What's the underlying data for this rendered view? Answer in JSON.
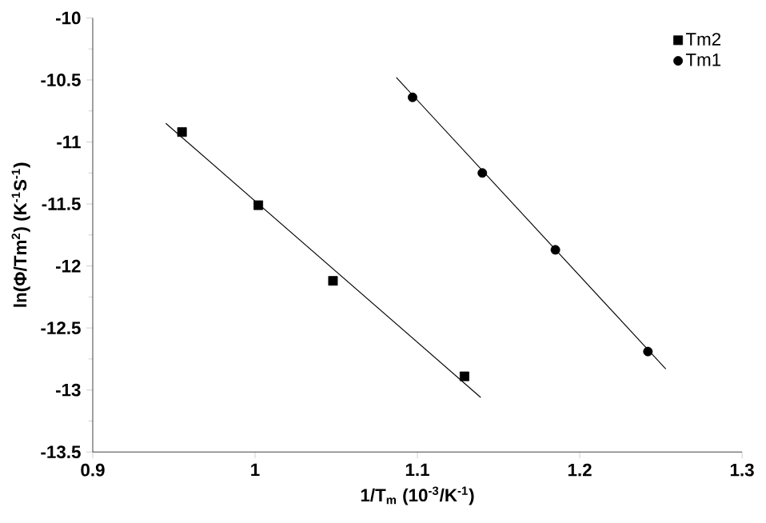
{
  "chart_data": {
    "type": "scatter",
    "xlabel": "1/T$_{m}$ (10$^{-3}$/K$^{-1}$)",
    "ylabel": "ln(Φ/Tm$^{2}$) (K$^{-1}$S$^{-1}$)",
    "xlim": [
      0.9,
      1.3
    ],
    "xticks": [
      0.9,
      1,
      1.1,
      1.2,
      1.3
    ],
    "ylim": [
      -13.5,
      -10
    ],
    "yticks": [
      -13.5,
      -13,
      -12.5,
      -12,
      -11.5,
      -11,
      -10.5,
      -10
    ],
    "legend": "top right",
    "grid": false,
    "series": [
      {
        "name": "Tm2",
        "color": "#000000",
        "marker": "square",
        "x": [
          0.955,
          1.002,
          1.048,
          1.129
        ],
        "values": [
          -10.92,
          -11.51,
          -12.12,
          -12.89
        ]
      },
      {
        "name": "Tm1",
        "color": "#000000",
        "marker": "circle",
        "x": [
          1.097,
          1.14,
          1.185,
          1.242
        ],
        "values": [
          -10.64,
          -11.25,
          -11.87,
          -12.69
        ]
      },
      {
        "type": "line",
        "color": "#000000",
        "x": [
          0.945,
          1.139
        ],
        "values": [
          -10.85,
          -13.06
        ]
      },
      {
        "type": "line",
        "color": "#000000",
        "x": [
          1.087,
          1.253
        ],
        "values": [
          -10.48,
          -12.83
        ]
      }
    ]
  }
}
